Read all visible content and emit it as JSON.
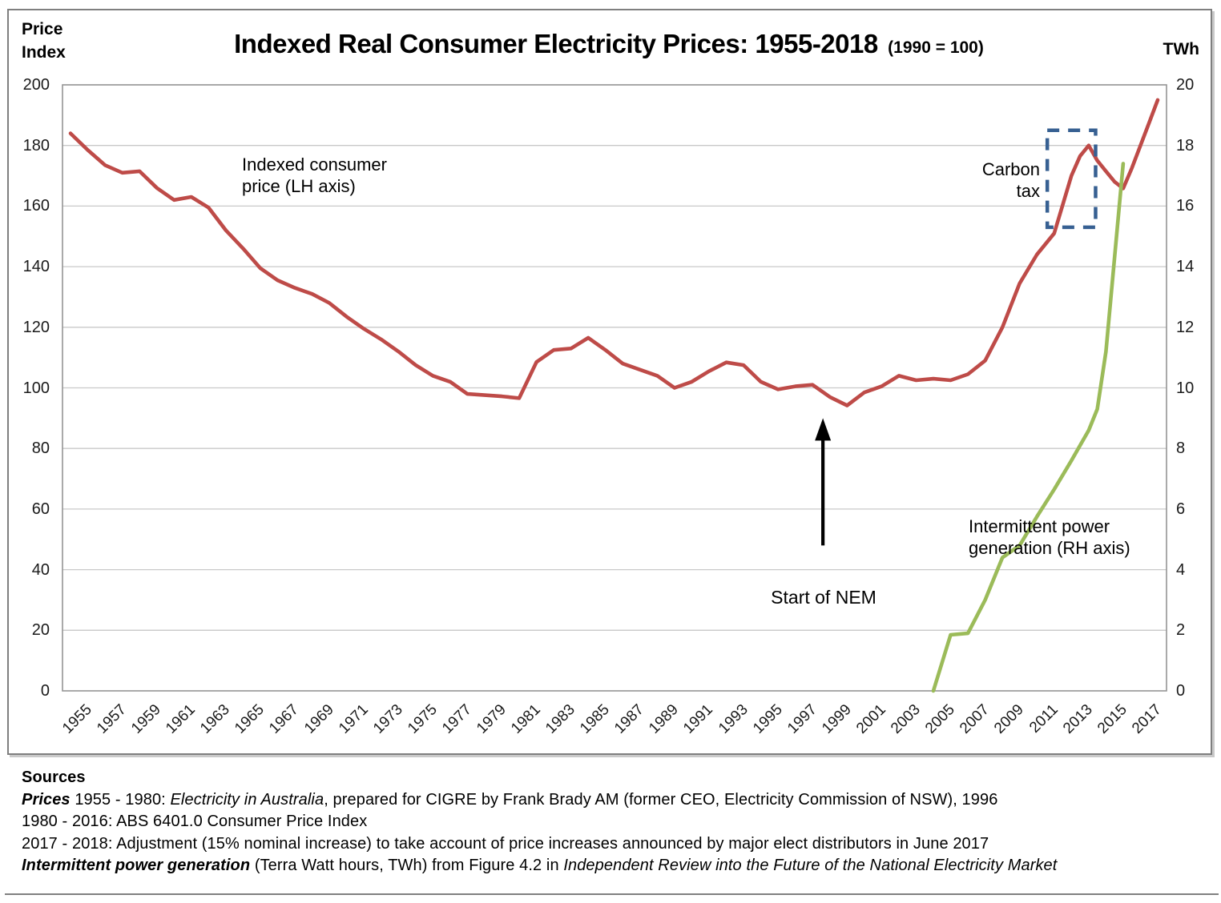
{
  "title": {
    "main": "Indexed Real Consumer Electricity Prices: 1955-2018",
    "paren": "(1990 = 100)"
  },
  "axes": {
    "left_title_line1": "Price",
    "left_title_line2": "Index",
    "right_title": "TWh",
    "left_ticks": [
      0,
      20,
      40,
      60,
      80,
      100,
      120,
      140,
      160,
      180,
      200
    ],
    "right_ticks": [
      0,
      2,
      4,
      6,
      8,
      10,
      12,
      14,
      16,
      18,
      20
    ],
    "x_ticks": [
      1955,
      1957,
      1959,
      1961,
      1963,
      1965,
      1967,
      1969,
      1971,
      1973,
      1975,
      1977,
      1979,
      1981,
      1983,
      1985,
      1987,
      1989,
      1991,
      1993,
      1995,
      1997,
      1999,
      2001,
      2003,
      2005,
      2007,
      2009,
      2011,
      2013,
      2015,
      2017
    ],
    "left_range": [
      0,
      200
    ],
    "right_range": [
      0,
      20
    ],
    "x_range": [
      1955,
      2018
    ],
    "grid": "horizontal-only"
  },
  "series_labels": {
    "price": "Indexed consumer\nprice (LH axis)",
    "generation": "Intermittent power\ngeneration (RH axis)"
  },
  "colors": {
    "price_line": "#BE4B48",
    "generation_line": "#9BBB59",
    "gridline": "#c9c9c9",
    "plot_border": "#959595",
    "carbon_box": "#376092",
    "arrow": "#000000"
  },
  "chart_data": {
    "type": "line",
    "title": "Indexed Real Consumer Electricity Prices: 1955-2018 (1990 = 100)",
    "series": [
      {
        "name": "Indexed consumer price (LH axis)",
        "axis": "left",
        "color": "#BE4B48",
        "points": [
          [
            1955,
            184
          ],
          [
            1956,
            178.5
          ],
          [
            1957,
            173.5
          ],
          [
            1958,
            171
          ],
          [
            1959,
            171.5
          ],
          [
            1960,
            166
          ],
          [
            1961,
            162
          ],
          [
            1962,
            163
          ],
          [
            1963,
            159.5
          ],
          [
            1964,
            152
          ],
          [
            1965,
            146
          ],
          [
            1966,
            139.5
          ],
          [
            1967,
            135.5
          ],
          [
            1968,
            133
          ],
          [
            1969,
            131
          ],
          [
            1970,
            128
          ],
          [
            1971,
            123.5
          ],
          [
            1972,
            119.5
          ],
          [
            1973,
            116
          ],
          [
            1974,
            112
          ],
          [
            1975,
            107.5
          ],
          [
            1976,
            104
          ],
          [
            1977,
            102
          ],
          [
            1978,
            98
          ],
          [
            1979,
            97.6
          ],
          [
            1980,
            97.2
          ],
          [
            1981,
            96.6
          ],
          [
            1982,
            108.5
          ],
          [
            1983,
            112.5
          ],
          [
            1984,
            113
          ],
          [
            1985,
            116.5
          ],
          [
            1986,
            112.5
          ],
          [
            1987,
            108
          ],
          [
            1988,
            106
          ],
          [
            1989,
            104
          ],
          [
            1990,
            100
          ],
          [
            1991,
            102
          ],
          [
            1992,
            105.5
          ],
          [
            1993,
            108.4
          ],
          [
            1994,
            107.5
          ],
          [
            1995,
            102
          ],
          [
            1996,
            99.5
          ],
          [
            1997,
            100.5
          ],
          [
            1998,
            101
          ],
          [
            1999,
            97
          ],
          [
            2000,
            94.2
          ],
          [
            2001,
            98.5
          ],
          [
            2002,
            100.5
          ],
          [
            2003,
            104
          ],
          [
            2004,
            102.5
          ],
          [
            2005,
            103
          ],
          [
            2006,
            102.5
          ],
          [
            2007,
            104.5
          ],
          [
            2008,
            109
          ],
          [
            2009,
            120
          ],
          [
            2010,
            134.5
          ],
          [
            2011,
            144
          ],
          [
            2012,
            151
          ],
          [
            2013,
            170
          ],
          [
            2013.5,
            176.5
          ],
          [
            2014,
            180
          ],
          [
            2014.5,
            175
          ],
          [
            2015,
            171.5
          ],
          [
            2015.5,
            168
          ],
          [
            2016,
            165.8
          ],
          [
            2016.5,
            172.5
          ],
          [
            2017,
            180
          ],
          [
            2017.5,
            187.5
          ],
          [
            2018,
            195
          ]
        ]
      },
      {
        "name": "Intermittent power generation (RH axis)",
        "axis": "right",
        "color": "#9BBB59",
        "points": [
          [
            2005,
            0
          ],
          [
            2006,
            1.85
          ],
          [
            2007,
            1.9
          ],
          [
            2008,
            3.0
          ],
          [
            2009,
            4.4
          ],
          [
            2010,
            4.8
          ],
          [
            2011,
            5.75
          ],
          [
            2012,
            6.65
          ],
          [
            2013,
            7.6
          ],
          [
            2014,
            8.6
          ],
          [
            2014.5,
            9.3
          ],
          [
            2015,
            11.2
          ],
          [
            2016,
            17.4
          ]
        ]
      }
    ],
    "annotations": {
      "carbon_tax": {
        "label": "Carbon\ntax",
        "box": {
          "year_start": 2011.6,
          "year_end": 2014.4,
          "value_low": 153,
          "value_high": 185
        }
      },
      "start_of_nem": {
        "label": "Start of NEM",
        "year": 1998.6,
        "arrow_from_value": 48,
        "arrow_to_value": 90
      }
    }
  },
  "sources": {
    "heading": "Sources",
    "lines": [
      [
        {
          "text": "Prices",
          "b": true,
          "i": true
        },
        {
          "text": " 1955 - 1980: ",
          "b": false,
          "i": false
        },
        {
          "text": "Electricity in Australia",
          "b": false,
          "i": true
        },
        {
          "text": ", prepared for CIGRE by Frank Brady AM (former CEO, Electricity Commission of NSW), 1996",
          "b": false,
          "i": false
        }
      ],
      [
        {
          "text": "1980 - 2016: ABS 6401.0 Consumer Price Index",
          "b": false,
          "i": false
        }
      ],
      [
        {
          "text": "2017 - 2018: Adjustment (15% nominal increase) to take account of price increases announced by major elect distributors in June 2017",
          "b": false,
          "i": false
        }
      ],
      [
        {
          "text": "Intermittent power generation",
          "b": true,
          "i": true
        },
        {
          "text": " (Terra Watt hours, TWh) from Figure 4.2 in ",
          "b": false,
          "i": false
        },
        {
          "text": "Independent Review into the Future of the National Electricity Market",
          "b": false,
          "i": true
        }
      ]
    ]
  }
}
